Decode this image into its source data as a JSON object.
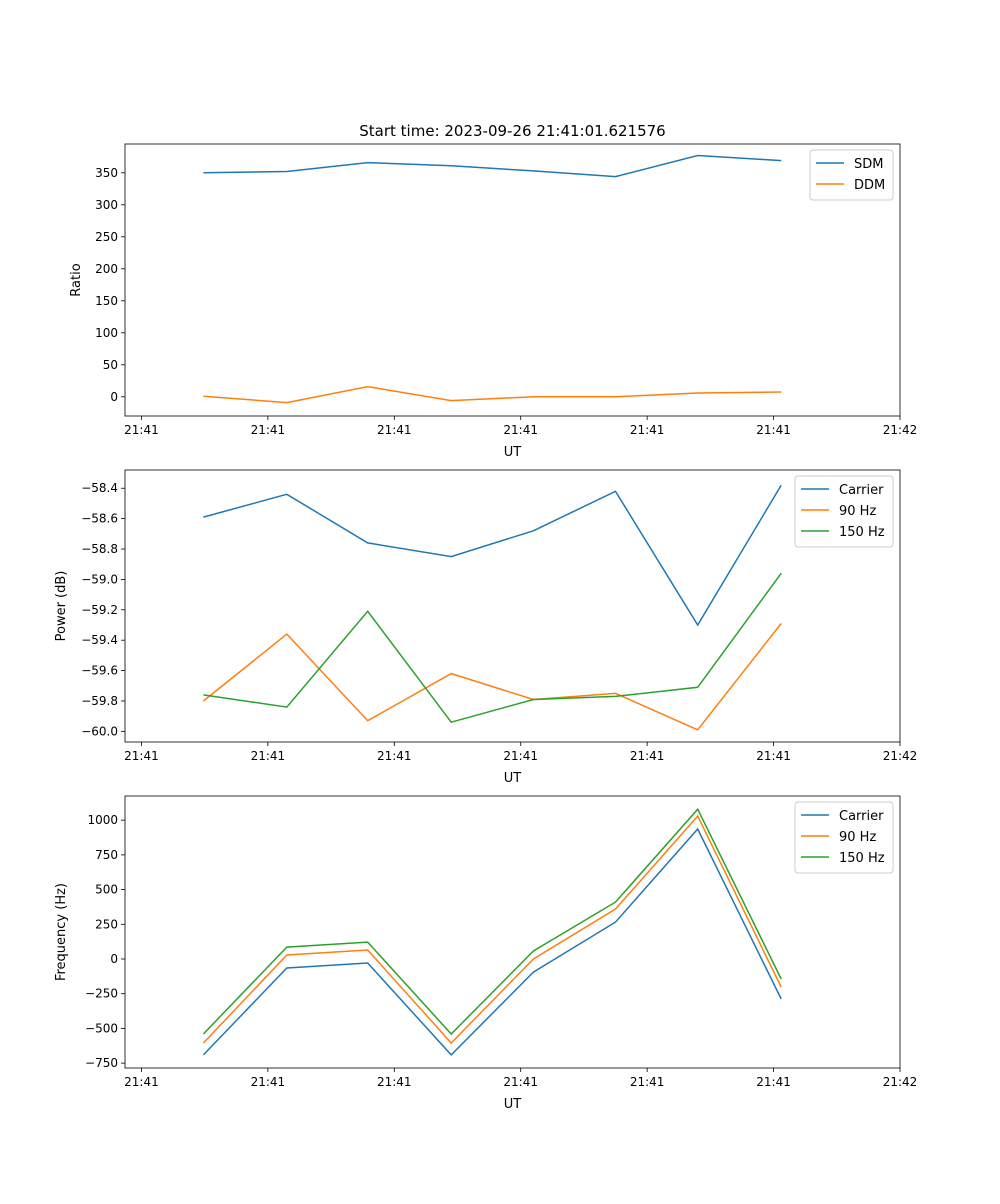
{
  "chart_data": [
    {
      "type": "line",
      "title": "Start time: 2023-09-26 21:41:01.621576",
      "xlabel": "UT",
      "ylabel": "Ratio",
      "x_unit": "seconds after 21:41:00",
      "x": [
        4.9,
        11.5,
        17.9,
        24.5,
        31.0,
        37.5,
        44.0,
        50.6
      ],
      "xlim": [
        -1.3,
        60
      ],
      "xticks": [
        0,
        10,
        20,
        30,
        40,
        50,
        60
      ],
      "xtick_labels": [
        "21:41",
        "21:41",
        "21:41",
        "21:41",
        "21:41",
        "21:41",
        "21:42"
      ],
      "ylim": [
        -30,
        395
      ],
      "yticks": [
        0,
        50,
        100,
        150,
        200,
        250,
        300,
        350
      ],
      "ytick_labels": [
        "0",
        "50",
        "100",
        "150",
        "200",
        "250",
        "300",
        "350"
      ],
      "legend": "top-right",
      "series": [
        {
          "name": "SDM",
          "color": "#1f77b4",
          "values": [
            350,
            352,
            366,
            361,
            353,
            344,
            377,
            369
          ]
        },
        {
          "name": "DDM",
          "color": "#ff7f0e",
          "values": [
            1,
            -9,
            16,
            -6,
            0,
            0,
            6,
            7.5
          ]
        }
      ]
    },
    {
      "type": "line",
      "title": "",
      "xlabel": "UT",
      "ylabel": "Power (dB)",
      "x_unit": "seconds after 21:41:00",
      "x": [
        4.9,
        11.5,
        17.9,
        24.5,
        31.0,
        37.5,
        44.0,
        50.6
      ],
      "xlim": [
        -1.3,
        60
      ],
      "xticks": [
        0,
        10,
        20,
        30,
        40,
        50,
        60
      ],
      "xtick_labels": [
        "21:41",
        "21:41",
        "21:41",
        "21:41",
        "21:41",
        "21:41",
        "21:42"
      ],
      "ylim": [
        -60.07,
        -58.28
      ],
      "yticks": [
        -60.0,
        -59.8,
        -59.6,
        -59.4,
        -59.2,
        -59.0,
        -58.8,
        -58.6,
        -58.4
      ],
      "ytick_labels": [
        "−60.0",
        "−59.8",
        "−59.6",
        "−59.4",
        "−59.2",
        "−59.0",
        "−58.8",
        "−58.6",
        "−58.4"
      ],
      "legend": "top-right",
      "series": [
        {
          "name": "Carrier",
          "color": "#1f77b4",
          "values": [
            -58.59,
            -58.44,
            -58.76,
            -58.85,
            -58.68,
            -58.42,
            -59.3,
            -58.38
          ]
        },
        {
          "name": "90 Hz",
          "color": "#ff7f0e",
          "values": [
            -59.8,
            -59.36,
            -59.93,
            -59.62,
            -59.79,
            -59.75,
            -59.99,
            -59.29
          ]
        },
        {
          "name": "150 Hz",
          "color": "#2ca02c",
          "values": [
            -59.76,
            -59.84,
            -59.21,
            -59.94,
            -59.79,
            -59.77,
            -59.71,
            -58.96
          ]
        }
      ]
    },
    {
      "type": "line",
      "title": "",
      "xlabel": "UT",
      "ylabel": "Frequency (Hz)",
      "x_unit": "seconds after 21:41:00",
      "x": [
        4.9,
        11.5,
        17.9,
        24.5,
        31.0,
        37.5,
        44.0,
        50.6
      ],
      "xlim": [
        -1.3,
        60
      ],
      "xticks": [
        0,
        10,
        20,
        30,
        40,
        50,
        60
      ],
      "xtick_labels": [
        "21:41",
        "21:41",
        "21:41",
        "21:41",
        "21:41",
        "21:41",
        "21:42"
      ],
      "ylim": [
        -785,
        1174
      ],
      "yticks": [
        -750,
        -500,
        -250,
        0,
        250,
        500,
        750,
        1000
      ],
      "ytick_labels": [
        "−750",
        "−500",
        "−250",
        "0",
        "250",
        "500",
        "750",
        "1000"
      ],
      "legend": "top-right",
      "series": [
        {
          "name": "Carrier",
          "color": "#1f77b4",
          "values": [
            -691,
            -65,
            -29,
            -691,
            -94,
            266,
            936,
            -288
          ]
        },
        {
          "name": "90 Hz",
          "color": "#ff7f0e",
          "values": [
            -605,
            29,
            65,
            -605,
            0,
            360,
            1029,
            -202
          ]
        },
        {
          "name": "150 Hz",
          "color": "#2ca02c",
          "values": [
            -540,
            86,
            122,
            -540,
            58,
            410,
            1079,
            -144
          ]
        }
      ]
    }
  ]
}
